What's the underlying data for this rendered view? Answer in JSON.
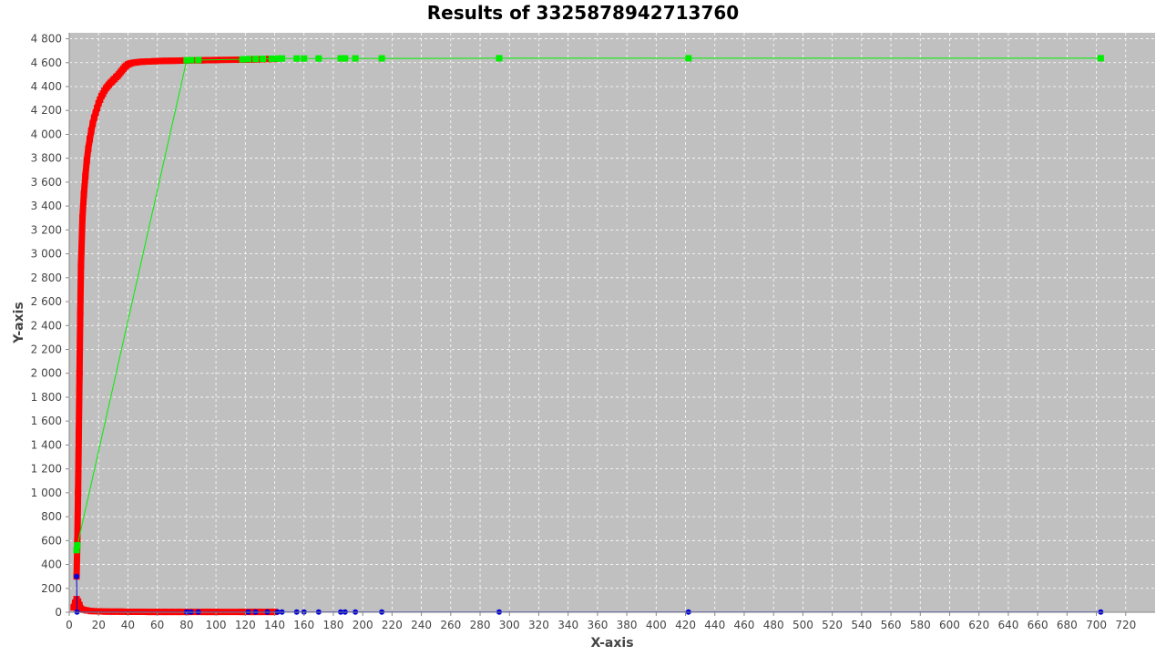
{
  "chart_data": {
    "type": "scatter",
    "title": "Results of 3325878942713760",
    "xlabel": "X-axis",
    "ylabel": "Y-axis",
    "xlim": [
      0,
      740
    ],
    "ylim": [
      0,
      4850
    ],
    "xticks": [
      0,
      20,
      40,
      60,
      80,
      100,
      120,
      140,
      160,
      180,
      200,
      220,
      240,
      260,
      280,
      300,
      320,
      340,
      360,
      380,
      400,
      420,
      440,
      460,
      480,
      500,
      520,
      540,
      560,
      580,
      600,
      620,
      640,
      660,
      680,
      700,
      720
    ],
    "yticks": [
      0,
      200,
      400,
      600,
      800,
      1000,
      1200,
      1400,
      1600,
      1800,
      2000,
      2200,
      2400,
      2600,
      2800,
      3000,
      3200,
      3400,
      3600,
      3800,
      4000,
      4200,
      4400,
      4600,
      4800
    ],
    "ytick_labels": [
      "0",
      "200",
      "400",
      "600",
      "800",
      "1 000",
      "1 200",
      "1 400",
      "1 600",
      "1 800",
      "2 000",
      "2 200",
      "2 400",
      "2 600",
      "2 800",
      "3 000",
      "3 200",
      "3 400",
      "3 600",
      "3 800",
      "4 000",
      "4 200",
      "4 400",
      "4 600",
      "4 800"
    ],
    "grid": true,
    "colors": {
      "plot_background": "#c0c0c0",
      "grid": "#ffffff",
      "red": "#ff0000",
      "green": "#00ee00",
      "blue": "#0000dd"
    },
    "series": [
      {
        "color": "red",
        "marker": "square",
        "x": [
          5,
          5.5,
          6,
          6.5,
          7,
          7.5,
          8,
          9,
          10,
          11,
          12,
          13,
          14,
          15,
          16,
          17,
          18,
          19,
          20,
          21,
          22,
          23,
          24,
          25,
          26,
          27,
          28,
          29,
          30,
          31,
          32,
          33,
          34,
          35,
          36,
          37,
          38,
          39,
          40,
          41,
          42,
          44,
          46,
          48,
          50,
          54,
          58,
          62,
          66,
          70,
          74,
          78,
          82,
          90,
          94,
          98,
          100,
          118,
          122,
          126,
          130,
          135,
          140
        ],
        "y": [
          300,
          600,
          1000,
          1500,
          2000,
          2500,
          2900,
          3300,
          3500,
          3650,
          3780,
          3880,
          3960,
          4030,
          4090,
          4140,
          4180,
          4220,
          4260,
          4290,
          4320,
          4340,
          4365,
          4385,
          4400,
          4415,
          4430,
          4440,
          4455,
          4465,
          4480,
          4490,
          4505,
          4520,
          4535,
          4550,
          4565,
          4575,
          4585,
          4590,
          4595,
          4600,
          4603,
          4606,
          4608,
          4610,
          4612,
          4614,
          4615,
          4616,
          4617,
          4618,
          4619,
          4620,
          4621,
          4621,
          4622,
          4625,
          4626,
          4627,
          4628,
          4630,
          4631
        ]
      },
      {
        "color": "red",
        "marker": "square",
        "x": [
          3,
          4,
          5,
          6,
          7,
          8,
          10,
          12,
          15,
          20,
          25,
          30,
          35,
          40,
          45,
          50,
          55,
          60,
          65,
          70,
          75,
          80,
          92,
          96,
          100,
          118,
          125,
          130,
          136,
          140
        ],
        "y": [
          40,
          80,
          110,
          90,
          60,
          30,
          20,
          15,
          10,
          8,
          6,
          5,
          5,
          4,
          4,
          4,
          3,
          3,
          3,
          3,
          3,
          3,
          3,
          3,
          3,
          3,
          3,
          3,
          3,
          3
        ]
      },
      {
        "color": "green",
        "marker": "square",
        "line": true,
        "x": [
          5,
          5.5,
          80,
          83,
          88,
          118,
          122,
          127,
          132,
          138,
          142,
          145,
          155,
          160,
          170,
          185,
          188,
          195,
          213,
          293,
          422,
          703
        ],
        "y": [
          520,
          560,
          4620,
          4621,
          4622,
          4628,
          4630,
          4631,
          4632,
          4633,
          4634,
          4635,
          4635,
          4635,
          4635,
          4636,
          4636,
          4636,
          4636,
          4637,
          4637,
          4637
        ]
      },
      {
        "color": "blue",
        "marker": "circle",
        "line": true,
        "x": [
          5,
          5.3,
          80,
          83,
          88,
          122,
          127,
          135,
          142,
          145,
          155,
          160,
          170,
          185,
          188,
          195,
          213,
          293,
          422,
          703
        ],
        "y": [
          300,
          2,
          2,
          2,
          2,
          2,
          2,
          2,
          2,
          2,
          2,
          2,
          2,
          2,
          2,
          2,
          2,
          2,
          2,
          2
        ]
      }
    ]
  }
}
